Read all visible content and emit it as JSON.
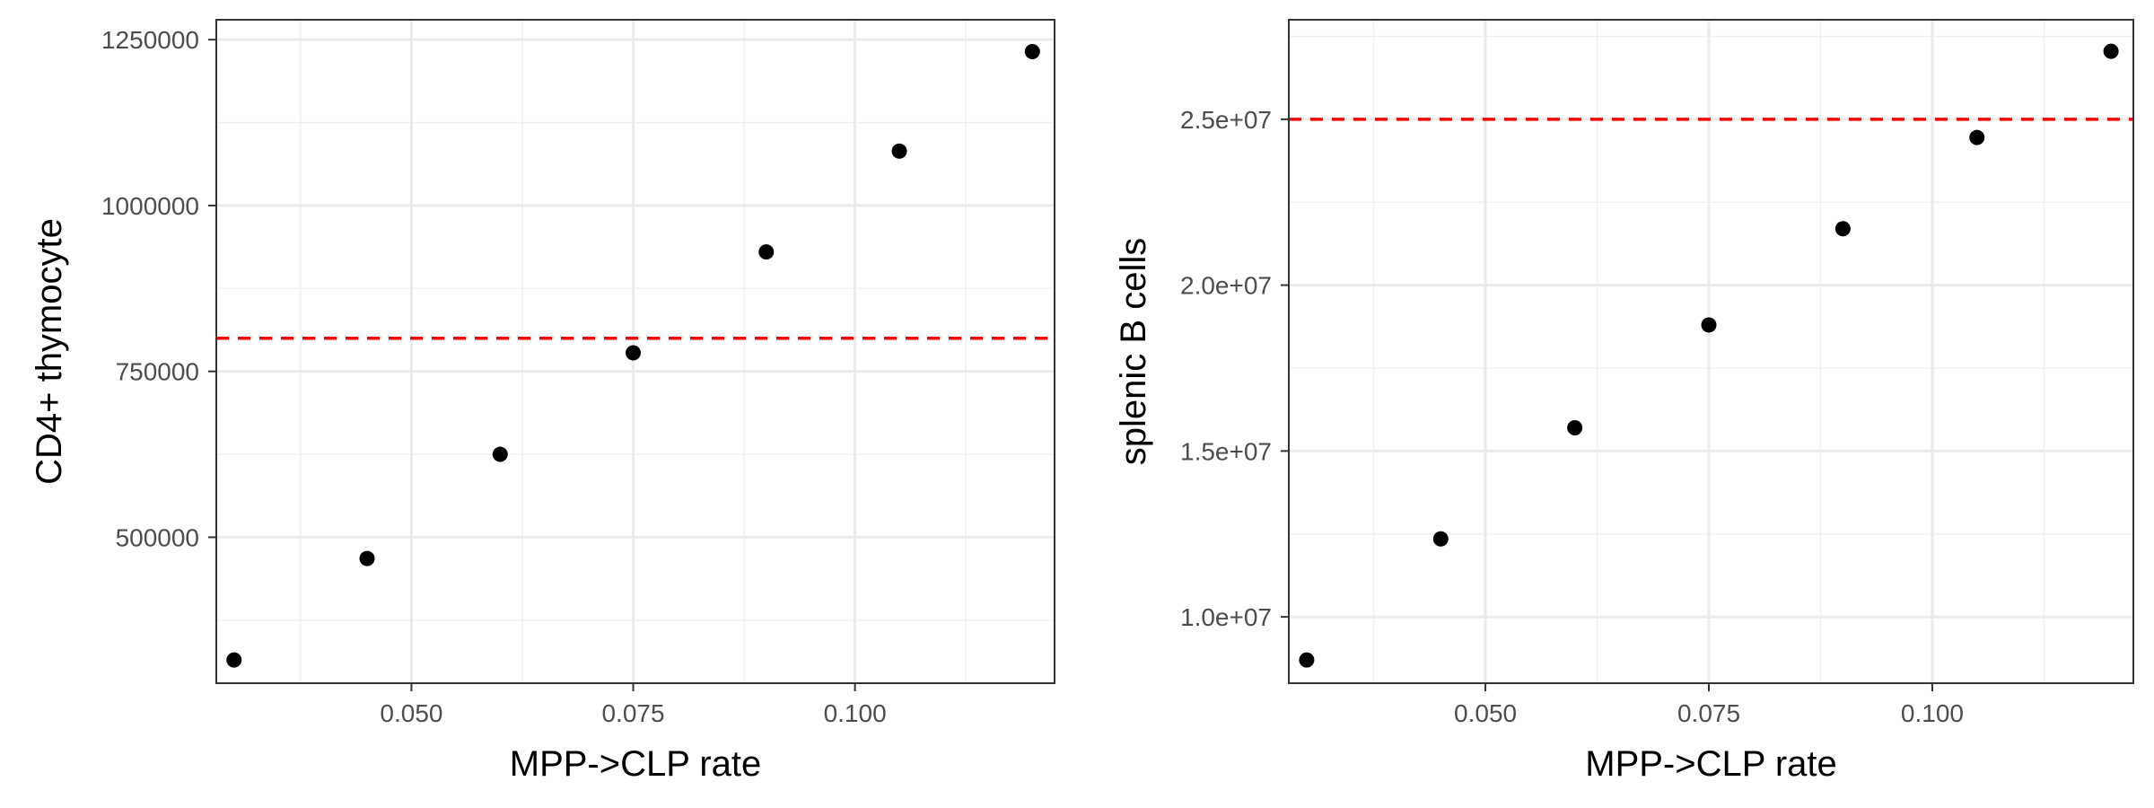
{
  "chart_data": [
    {
      "type": "scatter",
      "xlabel": "MPP->CLP rate",
      "ylabel": "CD4+ thymocyte",
      "xlim": [
        0.028,
        0.1225
      ],
      "ylim": [
        280000,
        1280000
      ],
      "x_ticks": [
        0.05,
        0.075,
        0.1
      ],
      "x_tick_labels": [
        "0.050",
        "0.075",
        "0.100"
      ],
      "y_ticks": [
        500000,
        750000,
        1000000,
        1250000
      ],
      "y_tick_labels": [
        "500000",
        "750000",
        "1000000",
        "1250000"
      ],
      "x": [
        0.03,
        0.045,
        0.06,
        0.075,
        0.09,
        0.105,
        0.12
      ],
      "y": [
        315000,
        468000,
        625000,
        778000,
        930000,
        1082000,
        1232000
      ],
      "reference_line": {
        "y": 800000,
        "style": "dashed",
        "color": "#ff0000"
      },
      "grid": true,
      "point_color": "#000000"
    },
    {
      "type": "scatter",
      "xlabel": "MPP->CLP rate",
      "ylabel": "splenic B cells",
      "xlim": [
        0.028,
        0.1225
      ],
      "ylim": [
        8000000,
        28000000
      ],
      "x_ticks": [
        0.05,
        0.075,
        0.1
      ],
      "x_tick_labels": [
        "0.050",
        "0.075",
        "0.100"
      ],
      "y_ticks": [
        10000000,
        15000000,
        20000000,
        25000000
      ],
      "y_tick_labels": [
        "1.0e+07",
        "1.5e+07",
        "2.0e+07",
        "2.5e+07"
      ],
      "x": [
        0.03,
        0.045,
        0.06,
        0.075,
        0.09,
        0.105,
        0.12
      ],
      "y": [
        8700000,
        12350000,
        15700000,
        18800000,
        21700000,
        24450000,
        27050000
      ],
      "reference_line": {
        "y": 25000000,
        "style": "dashed",
        "color": "#ff0000"
      },
      "grid": true,
      "point_color": "#000000"
    }
  ]
}
